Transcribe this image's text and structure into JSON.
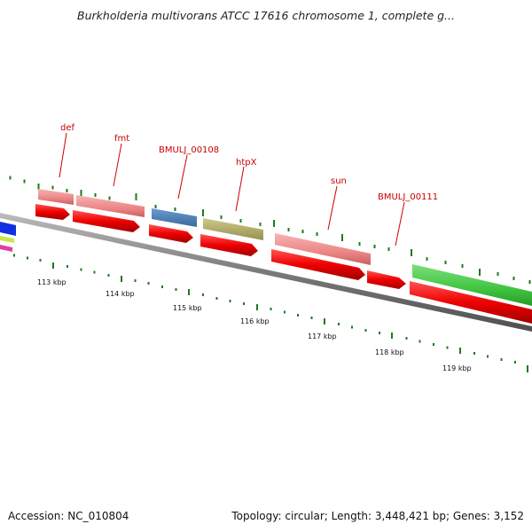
{
  "title": "Burkholderia multivorans ATCC 17616 chromosome 1, complete g...",
  "footer": {
    "accession": "Accession: NC_010804",
    "summary": "Topology: circular; Length: 3,448,421 bp; Genes: 3,152"
  },
  "gene_labels": [
    "def",
    "fmt",
    "BMULJ_00108",
    "htpX",
    "sun",
    "BMULJ_00111"
  ],
  "ruler_labels": [
    "113 kbp",
    "114 kbp",
    "115 kbp",
    "116 kbp",
    "117 kbp",
    "118 kbp",
    "119 kbp"
  ],
  "colors": {
    "cds": "#ff0000",
    "gene_pink": "#f08a8a",
    "gene_blue": "#4a7fb5",
    "gene_olive": "#b3ad6a",
    "gene_green": "#44cc44",
    "backbone": "#808080",
    "ticks": "#1f7a1f",
    "label_text": "#cc0000"
  }
}
